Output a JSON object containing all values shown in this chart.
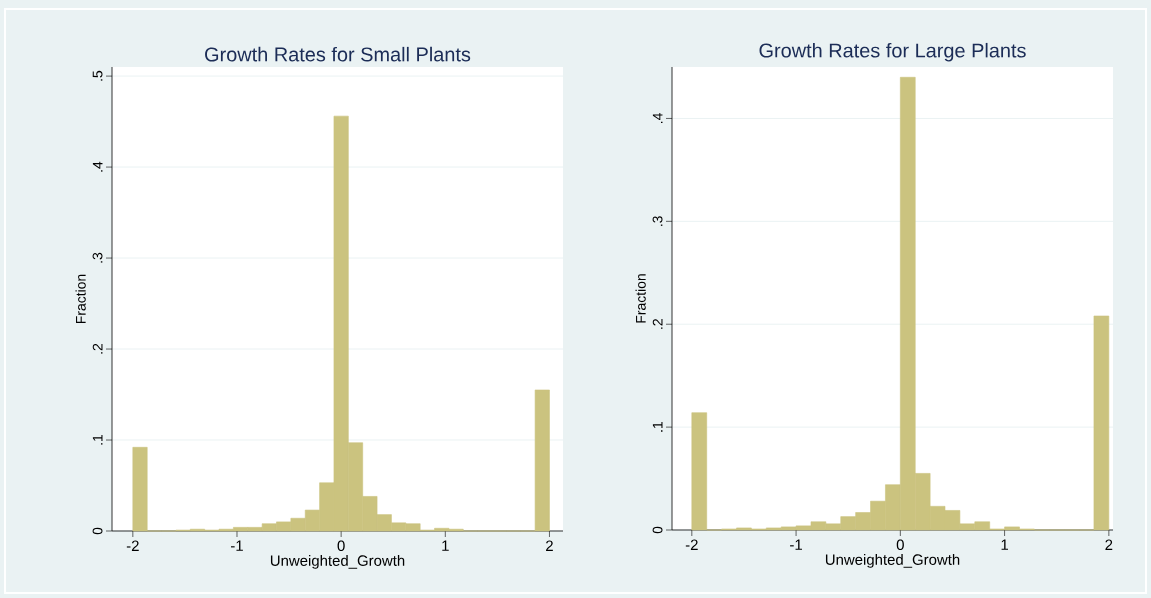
{
  "chart_data": [
    {
      "type": "histogram",
      "title": "Growth Rates for Small Plants",
      "xlabel": "Unweighted_Growth",
      "ylabel": "Fraction",
      "color": "#cbc37f",
      "grid": "y",
      "bins": [
        -2,
        -1.8621,
        -1.7241,
        -1.5862,
        -1.4483,
        -1.3103,
        -1.1724,
        -1.0345,
        -0.8966,
        -0.7586,
        -0.6207,
        -0.4828,
        -0.3448,
        -0.2069,
        -0.069,
        0.069,
        0.2069,
        0.3448,
        0.4828,
        0.6207,
        0.7586,
        0.8966,
        1.0345,
        1.1724,
        1.3103,
        1.4483,
        1.5862,
        1.7241,
        1.8621,
        2
      ],
      "values": [
        0.092,
        0,
        0,
        0.001,
        0.002,
        0.001,
        0.002,
        0.004,
        0.004,
        0.008,
        0.01,
        0.014,
        0.023,
        0.053,
        0.456,
        0.097,
        0.038,
        0.018,
        0.009,
        0.008,
        0.001,
        0.003,
        0.002,
        0,
        0,
        0,
        0,
        0,
        0.155
      ],
      "xlim": [
        -2.2,
        2.13
      ],
      "ylim": [
        0,
        0.51
      ],
      "xticks": [
        -2,
        -1,
        0,
        1,
        2
      ],
      "yticks": [
        0,
        {
          "value": 0.1,
          "label": ".1"
        },
        {
          "value": 0.2,
          "label": ".2"
        },
        {
          "value": 0.3,
          "label": ".3"
        },
        {
          "value": 0.4,
          "label": ".4"
        },
        {
          "value": 0.5,
          "label": ".5"
        }
      ]
    },
    {
      "type": "histogram",
      "title": "Growth Rates for Large Plants",
      "xlabel": "Unweighted_Growth",
      "ylabel": "Fraction",
      "color": "#cbc37f",
      "grid": "y",
      "bins": [
        -2,
        -1.8571,
        -1.7143,
        -1.5714,
        -1.4286,
        -1.2857,
        -1.1429,
        -1,
        -0.8571,
        -0.7143,
        -0.5714,
        -0.4286,
        -0.2857,
        -0.1429,
        0,
        0.1429,
        0.2857,
        0.4286,
        0.5714,
        0.7143,
        0.8571,
        1,
        1.1429,
        1.2857,
        1.4286,
        1.5714,
        1.7143,
        1.8571,
        2
      ],
      "values": [
        0.114,
        0,
        0.001,
        0.002,
        0.001,
        0.002,
        0.003,
        0.004,
        0.008,
        0.006,
        0.013,
        0.017,
        0.028,
        0.044,
        0.44,
        0.055,
        0.023,
        0.019,
        0.006,
        0.008,
        0.001,
        0.003,
        0.001,
        0,
        0,
        0,
        0,
        0.208
      ],
      "xlim": [
        -2.19,
        2.04
      ],
      "ylim": [
        0,
        0.45
      ],
      "xticks": [
        -2,
        -1,
        0,
        1,
        2
      ],
      "yticks": [
        0,
        {
          "value": 0.1,
          "label": ".1"
        },
        {
          "value": 0.2,
          "label": ".2"
        },
        {
          "value": 0.3,
          "label": ".3"
        },
        {
          "value": 0.4,
          "label": ".4"
        }
      ]
    }
  ]
}
